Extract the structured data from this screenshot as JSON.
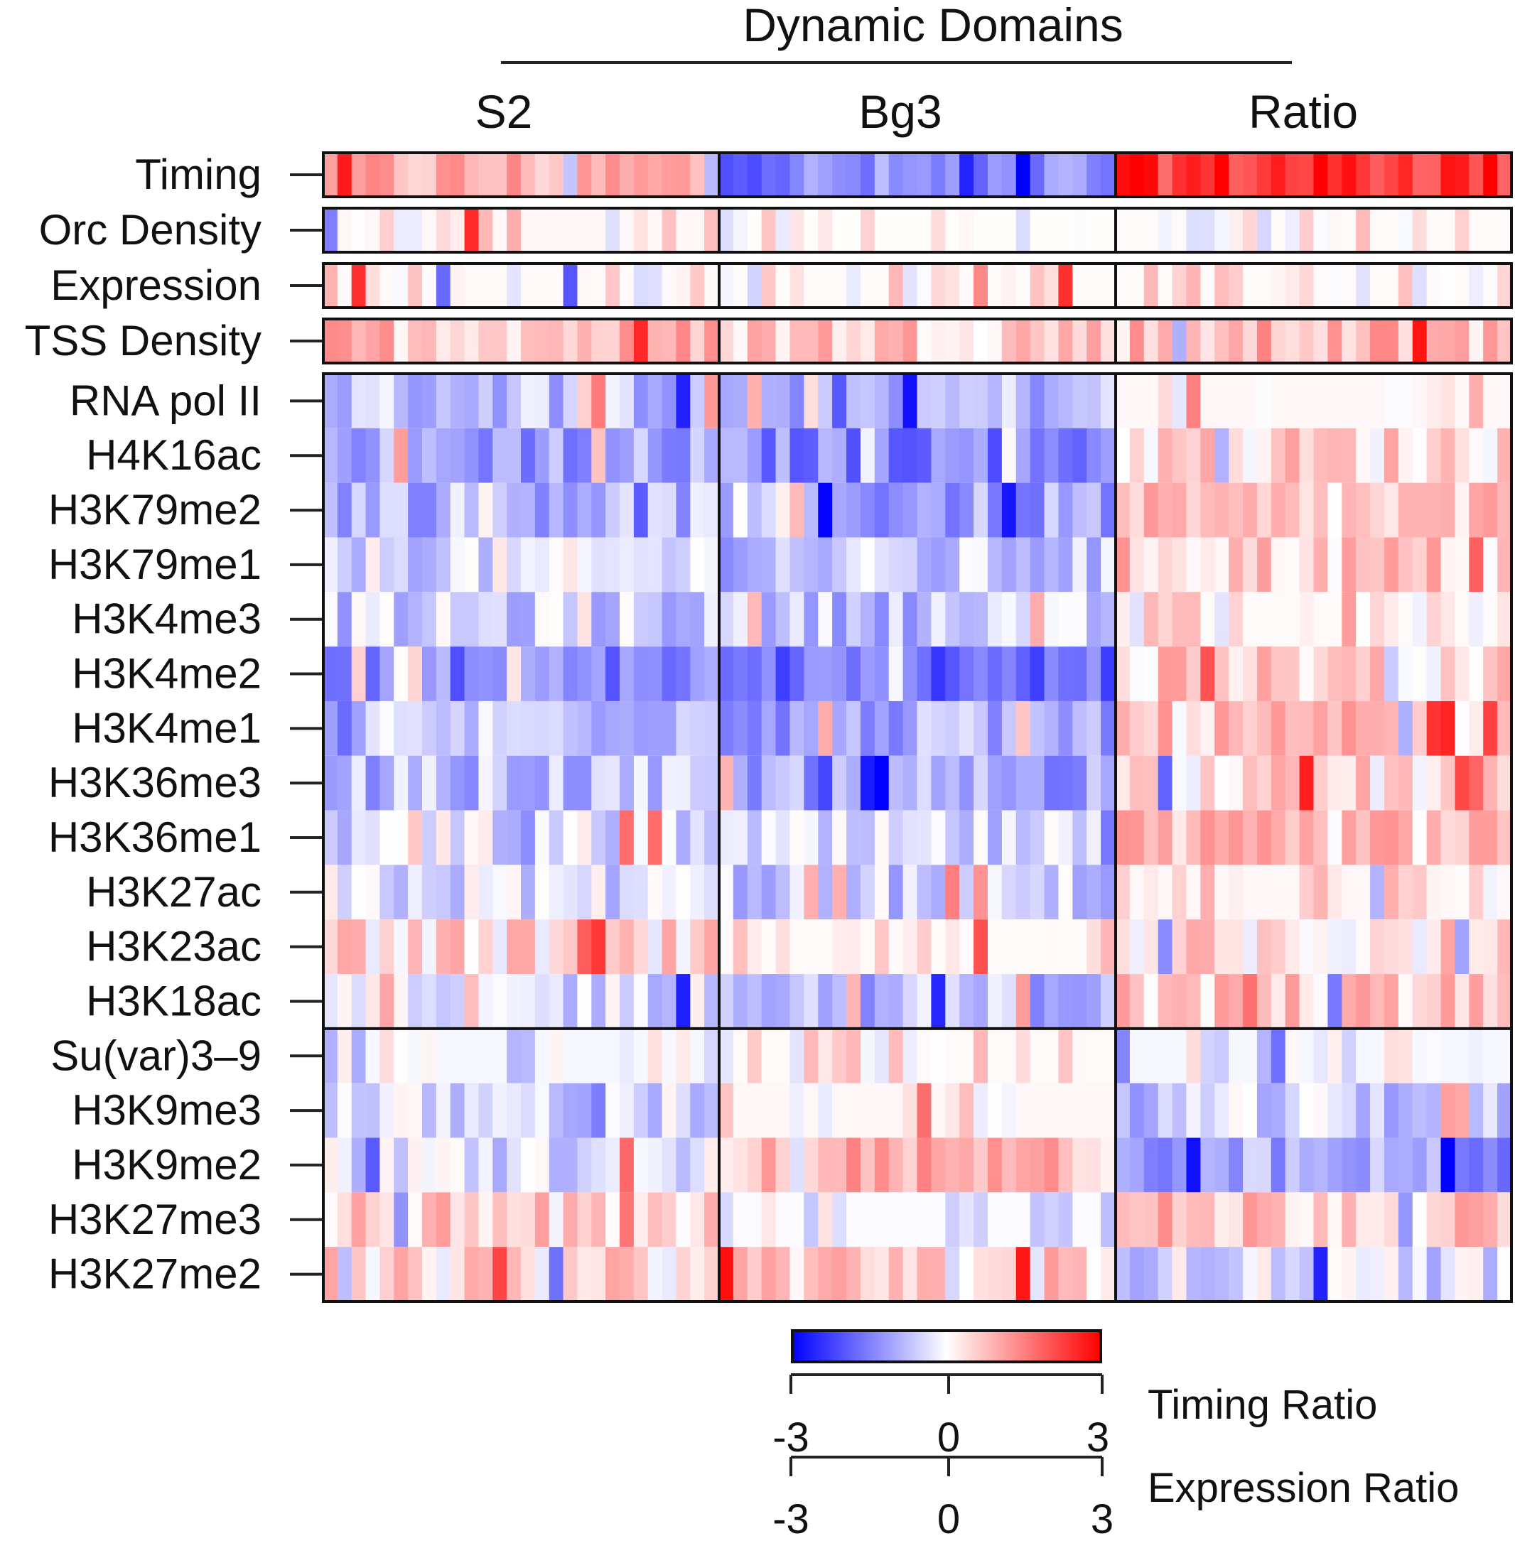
{
  "chart_data": {
    "type": "heatmap",
    "group_title": "Dynamic Domains",
    "panels": [
      "S2",
      "Bg3",
      "Ratio"
    ],
    "cells_per_panel": 28,
    "block1_rows": [
      "Timing",
      "Orc Density",
      "Expression",
      "TSS Density"
    ],
    "block2_rows": [
      "RNA pol II",
      "H4K16ac",
      "H3K79me2",
      "H3K79me1",
      "H3K4me3",
      "H3K4me2",
      "H3K4me1",
      "H3K36me3",
      "H3K36me1",
      "H3K27ac",
      "H3K23ac",
      "H3K18ac"
    ],
    "block3_rows": [
      "Su(var)3–9",
      "H3K9me3",
      "H3K9me2",
      "H3K27me3",
      "H3K27me2"
    ],
    "row_means": {
      "Timing": [
        0.9,
        -1.4,
        2.4
      ],
      "Orc Density": [
        0.3,
        0.1,
        0.2
      ],
      "Expression": [
        0.25,
        0.15,
        0.2
      ],
      "TSS Density": [
        0.8,
        0.7,
        0.8
      ],
      "RNA pol II": [
        -0.7,
        -0.8,
        0.3
      ],
      "H4K16ac": [
        -1.1,
        -1.4,
        0.5
      ],
      "H3K79me2": [
        -0.8,
        -1.1,
        0.5
      ],
      "H3K79me1": [
        -0.4,
        -0.7,
        0.6
      ],
      "H3K4me3": [
        -0.6,
        -0.7,
        0.2
      ],
      "H3K4me2": [
        -1.4,
        -1.7,
        0.5
      ],
      "H3K4me1": [
        -0.6,
        -1.0,
        0.6
      ],
      "H3K36me3": [
        -0.8,
        -1.0,
        0.4
      ],
      "H3K36me1": [
        -0.4,
        -0.6,
        0.6
      ],
      "H3K27ac": [
        -0.4,
        -0.6,
        0.3
      ],
      "H3K23ac": [
        0.4,
        0.2,
        0.4
      ],
      "H3K18ac": [
        -0.4,
        -0.8,
        0.6
      ],
      "Su(var)3–9": [
        -0.3,
        0.2,
        -0.3
      ],
      "H3K9me3": [
        -0.5,
        0.3,
        -0.6
      ],
      "H3K9me2": [
        -0.4,
        0.8,
        -1.1
      ],
      "H3K27me3": [
        0.5,
        -0.2,
        0.7
      ],
      "H3K27me2": [
        0.4,
        0.7,
        -0.4
      ]
    },
    "colorscale": {
      "min_color": "#0000ff",
      "mid_color": "#ffffff",
      "max_color": "#ff0000",
      "min": -3,
      "mid": 0,
      "max": 3
    },
    "legend_scales": [
      {
        "label": "Timing Ratio",
        "ticks": [
          "-3",
          "0",
          "3"
        ]
      },
      {
        "label": "Expression Ratio",
        "ticks": [
          "-3",
          "0",
          "3"
        ]
      }
    ]
  }
}
